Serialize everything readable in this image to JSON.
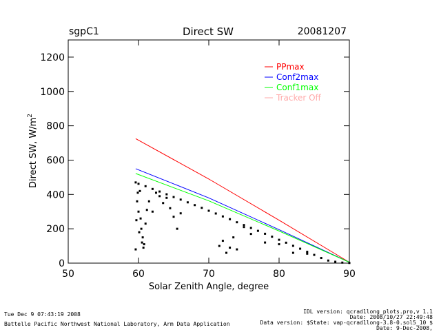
{
  "header": {
    "site": "sgpC1",
    "title": "Direct SW",
    "date": "20081207"
  },
  "footer": {
    "run_time": "Tue Dec  9 07:43:19 2008",
    "organization": "Battelle Pacific Northwest National Laboratory, Arm Data Application",
    "idl_version": "IDL version: qcrad1long_plots.pro,v 1.1",
    "idl_date": "Date: 2008/10/27 22:49:48",
    "data_version": "Data version: $State: vap-qcrad1long-3.8-0.sol5_10 $",
    "data_date": "Date: 9-Dec-2008,"
  },
  "chart_data": {
    "type": "scatter",
    "title": "Direct SW",
    "xlabel": "Solar Zenith Angle, degree",
    "ylabel_main": "Direct SW, W/m",
    "ylabel_sup": "2",
    "xlim": [
      50,
      90
    ],
    "ylim": [
      0,
      1300
    ],
    "xticks": [
      50,
      60,
      70,
      80,
      90
    ],
    "yticks": [
      0,
      200,
      400,
      600,
      800,
      1000,
      1200
    ],
    "grid": false,
    "legend_position": "top-right",
    "series": [
      {
        "name": "PPmax",
        "color": "#ff0000",
        "kind": "line",
        "x": [
          59.6,
          70,
          80,
          90
        ],
        "y": [
          725,
          490,
          250,
          5
        ]
      },
      {
        "name": "Conf2max",
        "color": "#0000ff",
        "kind": "line",
        "x": [
          59.6,
          70,
          80,
          90
        ],
        "y": [
          550,
          380,
          195,
          5
        ]
      },
      {
        "name": "Conf1max",
        "color": "#00ff00",
        "kind": "line",
        "x": [
          59.6,
          70,
          80,
          90
        ],
        "y": [
          522,
          363,
          187,
          5
        ]
      },
      {
        "name": "Tracker Off",
        "color": "#ffaaaa",
        "kind": "marker",
        "x": [],
        "y": []
      },
      {
        "name": "",
        "color": "#000000",
        "kind": "marker",
        "x": [
          59.6,
          60,
          61,
          62,
          63,
          64,
          65,
          66,
          67,
          68,
          69,
          70,
          71,
          72,
          73,
          74,
          75,
          76,
          77,
          78,
          79,
          80,
          81,
          82,
          83,
          84,
          85,
          86,
          87,
          88,
          89,
          90
        ],
        "y": [
          470,
          462,
          448,
          432,
          417,
          401,
          385,
          370,
          354,
          338,
          322,
          305,
          289,
          272,
          256,
          238,
          222,
          205,
          188,
          171,
          154,
          136,
          119,
          101,
          84,
          66,
          48,
          30,
          15,
          8,
          3,
          1
        ]
      },
      {
        "name": "",
        "color": "#000000",
        "kind": "marker",
        "x": [
          59.6,
          59.7,
          59.8,
          59.9,
          60,
          60.1,
          60.2,
          60.3,
          60.4,
          60.5,
          60.6,
          60.7,
          60.8,
          61,
          61.2,
          61.5,
          62,
          62.5,
          63,
          63.5,
          64,
          64.5,
          65,
          65.5,
          66,
          71.5,
          72,
          72.5,
          73,
          73.5,
          74,
          75,
          76,
          78,
          80,
          82,
          84
        ],
        "y": [
          80,
          250,
          360,
          410,
          300,
          180,
          420,
          260,
          200,
          120,
          150,
          90,
          110,
          230,
          310,
          360,
          300,
          410,
          390,
          350,
          380,
          320,
          270,
          200,
          290,
          100,
          130,
          60,
          90,
          150,
          80,
          210,
          170,
          120,
          110,
          60,
          55
        ]
      }
    ]
  }
}
